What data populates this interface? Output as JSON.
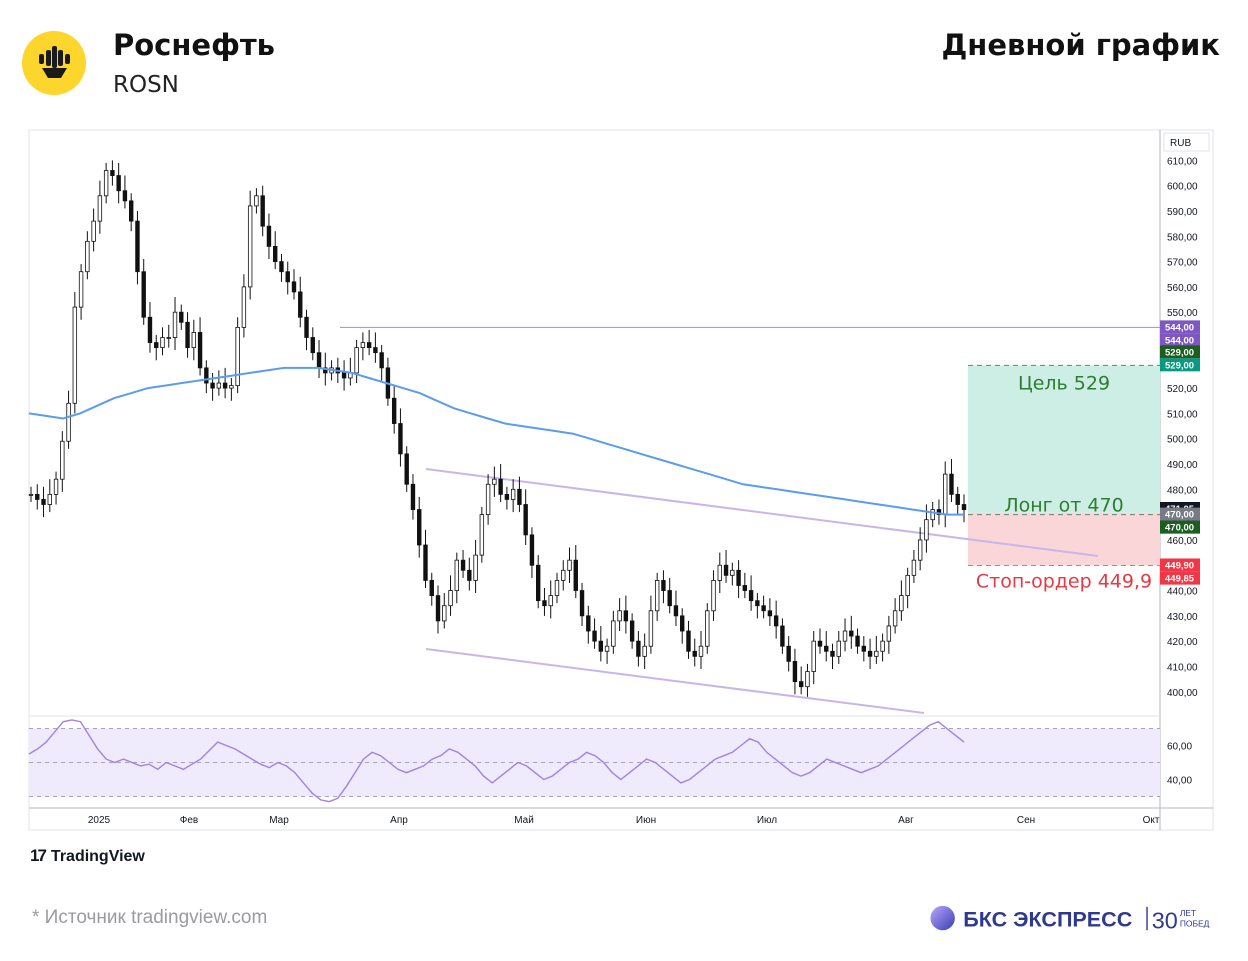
{
  "header": {
    "company": "Роснефть",
    "ticker": "ROSN",
    "period": "Дневной график"
  },
  "footer": {
    "tradingview": "TradingView",
    "source": "*  Источник tradingview.com",
    "brand": "БКС ЭКСПРЕСС",
    "brand_years": "30",
    "brand_years_caption_top": "ЛЕТ",
    "brand_years_caption_bottom": "ПОБЕД"
  },
  "colors": {
    "ma": "#5b9cf0",
    "channel": "#c7b7e8",
    "target_zone": "#cdeee4",
    "stop_zone": "#fbd6d8",
    "target_text": "#2e7d32",
    "stop_text": "#e53944",
    "rsi_band": "#efeafc",
    "rsi_line": "#a183e0",
    "candle": "#111111",
    "brand": "#2f3a8f"
  },
  "chart_data": {
    "type": "candlestick",
    "currency": "RUB",
    "ylim": [
      392,
      622
    ],
    "y_ticks": [
      400,
      410,
      420,
      430,
      440,
      450,
      460,
      470,
      480,
      490,
      500,
      510,
      520,
      530,
      540,
      550,
      560,
      570,
      580,
      590,
      600,
      610
    ],
    "y_tick_labels": [
      "400,00",
      "410,00",
      "420,00",
      "430,00",
      "440,00",
      "450,00",
      "460,00",
      "470,00",
      "480,00",
      "490,00",
      "500,00",
      "510,00",
      "520,00",
      "530,00",
      "540,00",
      "550,00",
      "560,00",
      "570,00",
      "580,00",
      "590,00",
      "600,00",
      "610,00"
    ],
    "x_labels": [
      "2025",
      "Фев",
      "Мар",
      "Апр",
      "Май",
      "Июн",
      "Июл",
      "Авг",
      "Сен",
      "Окт"
    ],
    "price_tags": [
      {
        "label": "544,00",
        "value": 544,
        "color": "#7e57c2"
      },
      {
        "label": "544,00",
        "value": 544,
        "color": "#7e57c2",
        "position": "below"
      },
      {
        "label": "529,00",
        "value": 529,
        "color": "#1b5e20",
        "position": "above"
      },
      {
        "label": "529,00",
        "value": 529,
        "color": "#089981"
      },
      {
        "label": "471,05",
        "value": 471.05,
        "color": "#131722",
        "sublabel": "07:08:25"
      },
      {
        "label": "470,00",
        "value": 470,
        "color": "#787b86"
      },
      {
        "label": "470,00",
        "value": 470,
        "color": "#1b5e20",
        "position": "below"
      },
      {
        "label": "449,90",
        "value": 449.9,
        "color": "#f23645"
      },
      {
        "label": "449,85",
        "value": 449.85,
        "color": "#f23645",
        "position": "below"
      }
    ],
    "annotations": {
      "target": {
        "label": "Цель 529",
        "value": 529
      },
      "entry": {
        "label": "Лонг от 470",
        "value": 470
      },
      "stop": {
        "label": "Стоп-ордер 449,9",
        "value": 449.9
      }
    },
    "resistance_level": 544,
    "candles_close": [
      478,
      476,
      474,
      478,
      484,
      499,
      514,
      552,
      566,
      578,
      586,
      596,
      606,
      604,
      598,
      594,
      586,
      566,
      548,
      538,
      536,
      540,
      540,
      550,
      546,
      536,
      542,
      528,
      522,
      520,
      522,
      520,
      521,
      544,
      560,
      592,
      596,
      584,
      576,
      570,
      566,
      562,
      558,
      548,
      540,
      534,
      528,
      526,
      528,
      526,
      524,
      526,
      536,
      538,
      536,
      534,
      528,
      516,
      506,
      494,
      482,
      472,
      458,
      444,
      438,
      428,
      434,
      440,
      452,
      448,
      444,
      454,
      470,
      482,
      484,
      478,
      476,
      480,
      474,
      462,
      450,
      436,
      434,
      438,
      444,
      448,
      452,
      440,
      430,
      424,
      420,
      416,
      418,
      428,
      432,
      428,
      420,
      414,
      418,
      432,
      444,
      440,
      434,
      430,
      424,
      416,
      414,
      418,
      432,
      444,
      450,
      446,
      448,
      442,
      440,
      436,
      434,
      432,
      430,
      426,
      418,
      412,
      404,
      402,
      408,
      420,
      418,
      416,
      414,
      420,
      424,
      422,
      418,
      416,
      414,
      416,
      420,
      426,
      432,
      438,
      446,
      452,
      460,
      468,
      472,
      470,
      486,
      478,
      474,
      472
    ],
    "ma_200": [
      510,
      509,
      508,
      510,
      513,
      516,
      518,
      520,
      521,
      522,
      523,
      524,
      525,
      526,
      527,
      528,
      528,
      528,
      527,
      526,
      524,
      522,
      520,
      518,
      515,
      512,
      510,
      508,
      506,
      505,
      504,
      503,
      502,
      500,
      498,
      496,
      494,
      492,
      490,
      488,
      486,
      484,
      482,
      481,
      480,
      479,
      478,
      477,
      476,
      475,
      474,
      473,
      472,
      471,
      470,
      470
    ],
    "rsi": {
      "ylim": [
        25,
        75
      ],
      "ticks": [
        40,
        60
      ],
      "tick_labels": [
        "40,00",
        "60,00"
      ],
      "band": [
        30,
        70
      ],
      "mid": 50,
      "values": [
        55,
        58,
        62,
        68,
        74,
        76,
        74,
        66,
        58,
        52,
        50,
        52,
        50,
        48,
        49,
        46,
        50,
        48,
        46,
        49,
        52,
        57,
        62,
        60,
        58,
        55,
        52,
        49,
        47,
        50,
        48,
        44,
        38,
        32,
        28,
        27,
        29,
        36,
        44,
        52,
        56,
        54,
        50,
        46,
        44,
        46,
        48,
        52,
        54,
        58,
        56,
        52,
        48,
        42,
        38,
        42,
        46,
        50,
        48,
        44,
        40,
        42,
        46,
        50,
        52,
        56,
        54,
        50,
        44,
        40,
        44,
        48,
        52,
        50,
        46,
        42,
        38,
        40,
        44,
        48,
        52,
        54,
        56,
        60,
        64,
        62,
        56,
        52,
        48,
        44,
        42,
        44,
        48,
        52,
        50,
        48,
        46,
        44,
        46,
        48,
        52,
        56,
        60,
        64,
        68,
        72,
        74,
        70,
        66,
        62
      ]
    }
  }
}
